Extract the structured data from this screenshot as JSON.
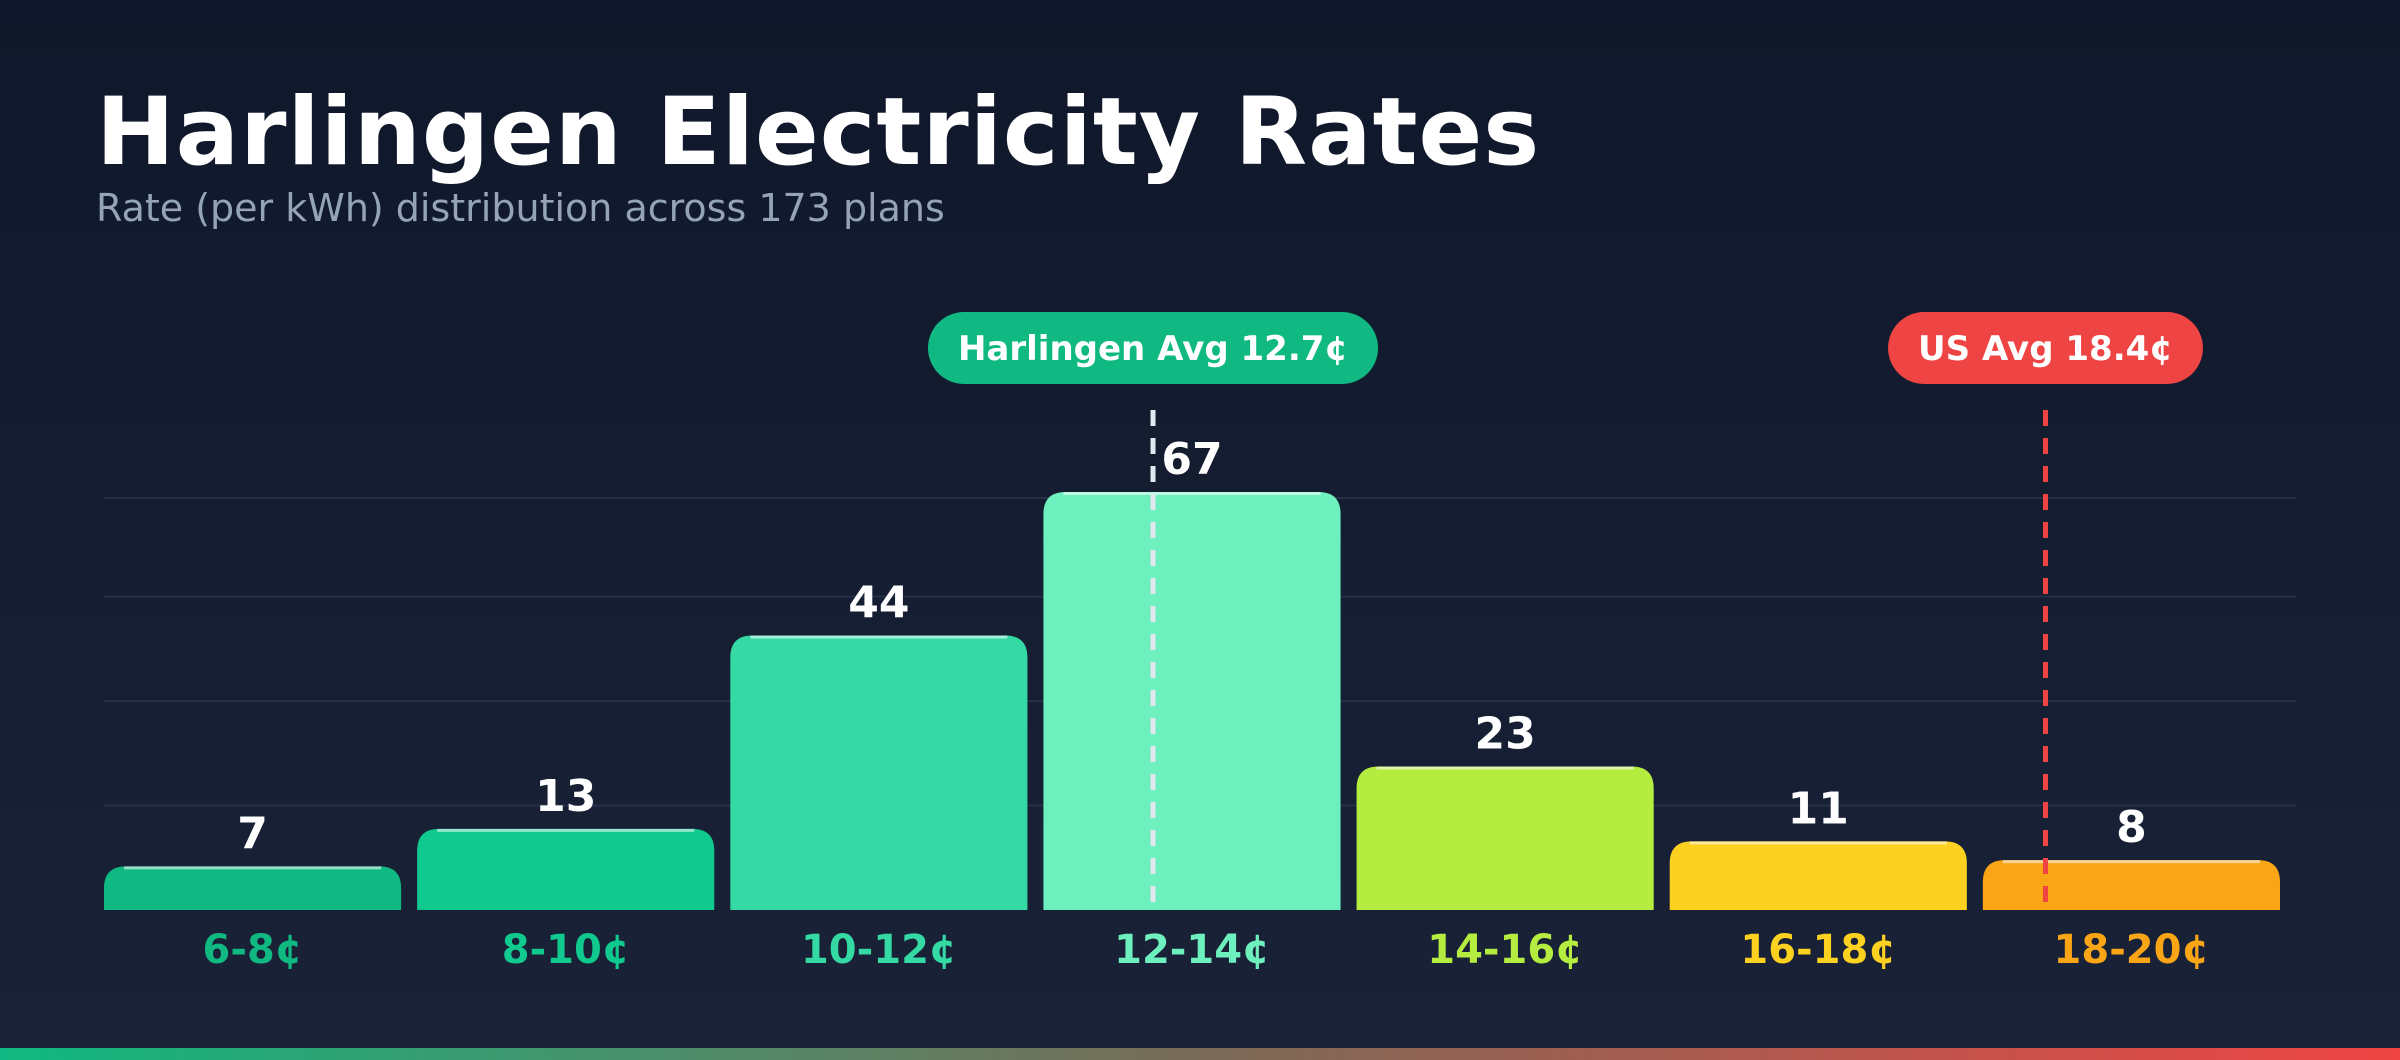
{
  "header": {
    "title": "Harlingen Electricity Rates",
    "subtitle": "Rate (per kWh) distribution across 173 plans"
  },
  "chart_data": {
    "type": "bar",
    "title": "Harlingen Electricity Rates",
    "subtitle": "Rate (per kWh) distribution across 173 plans",
    "categories": [
      "6-8¢",
      "8-10¢",
      "10-12¢",
      "12-14¢",
      "14-16¢",
      "16-18¢",
      "18-20¢"
    ],
    "values": [
      7,
      13,
      44,
      67,
      23,
      11,
      8
    ],
    "colors": [
      "#10b981",
      "#10c98f",
      "#34d9a3",
      "#6ef0be",
      "#b4ec3f",
      "#fcd11f",
      "#f9a515"
    ],
    "xlim": [
      6,
      20
    ],
    "ylim": [
      0,
      67
    ],
    "grid": true,
    "annotations": [
      {
        "label": "Harlingen Avg 12.7¢",
        "x": 12.7,
        "color": "#10b981",
        "line_color": "#e2e8f0"
      },
      {
        "label": "US Avg 18.4¢",
        "x": 18.4,
        "color": "#ef4444",
        "line_color": "#ef4444"
      }
    ]
  }
}
